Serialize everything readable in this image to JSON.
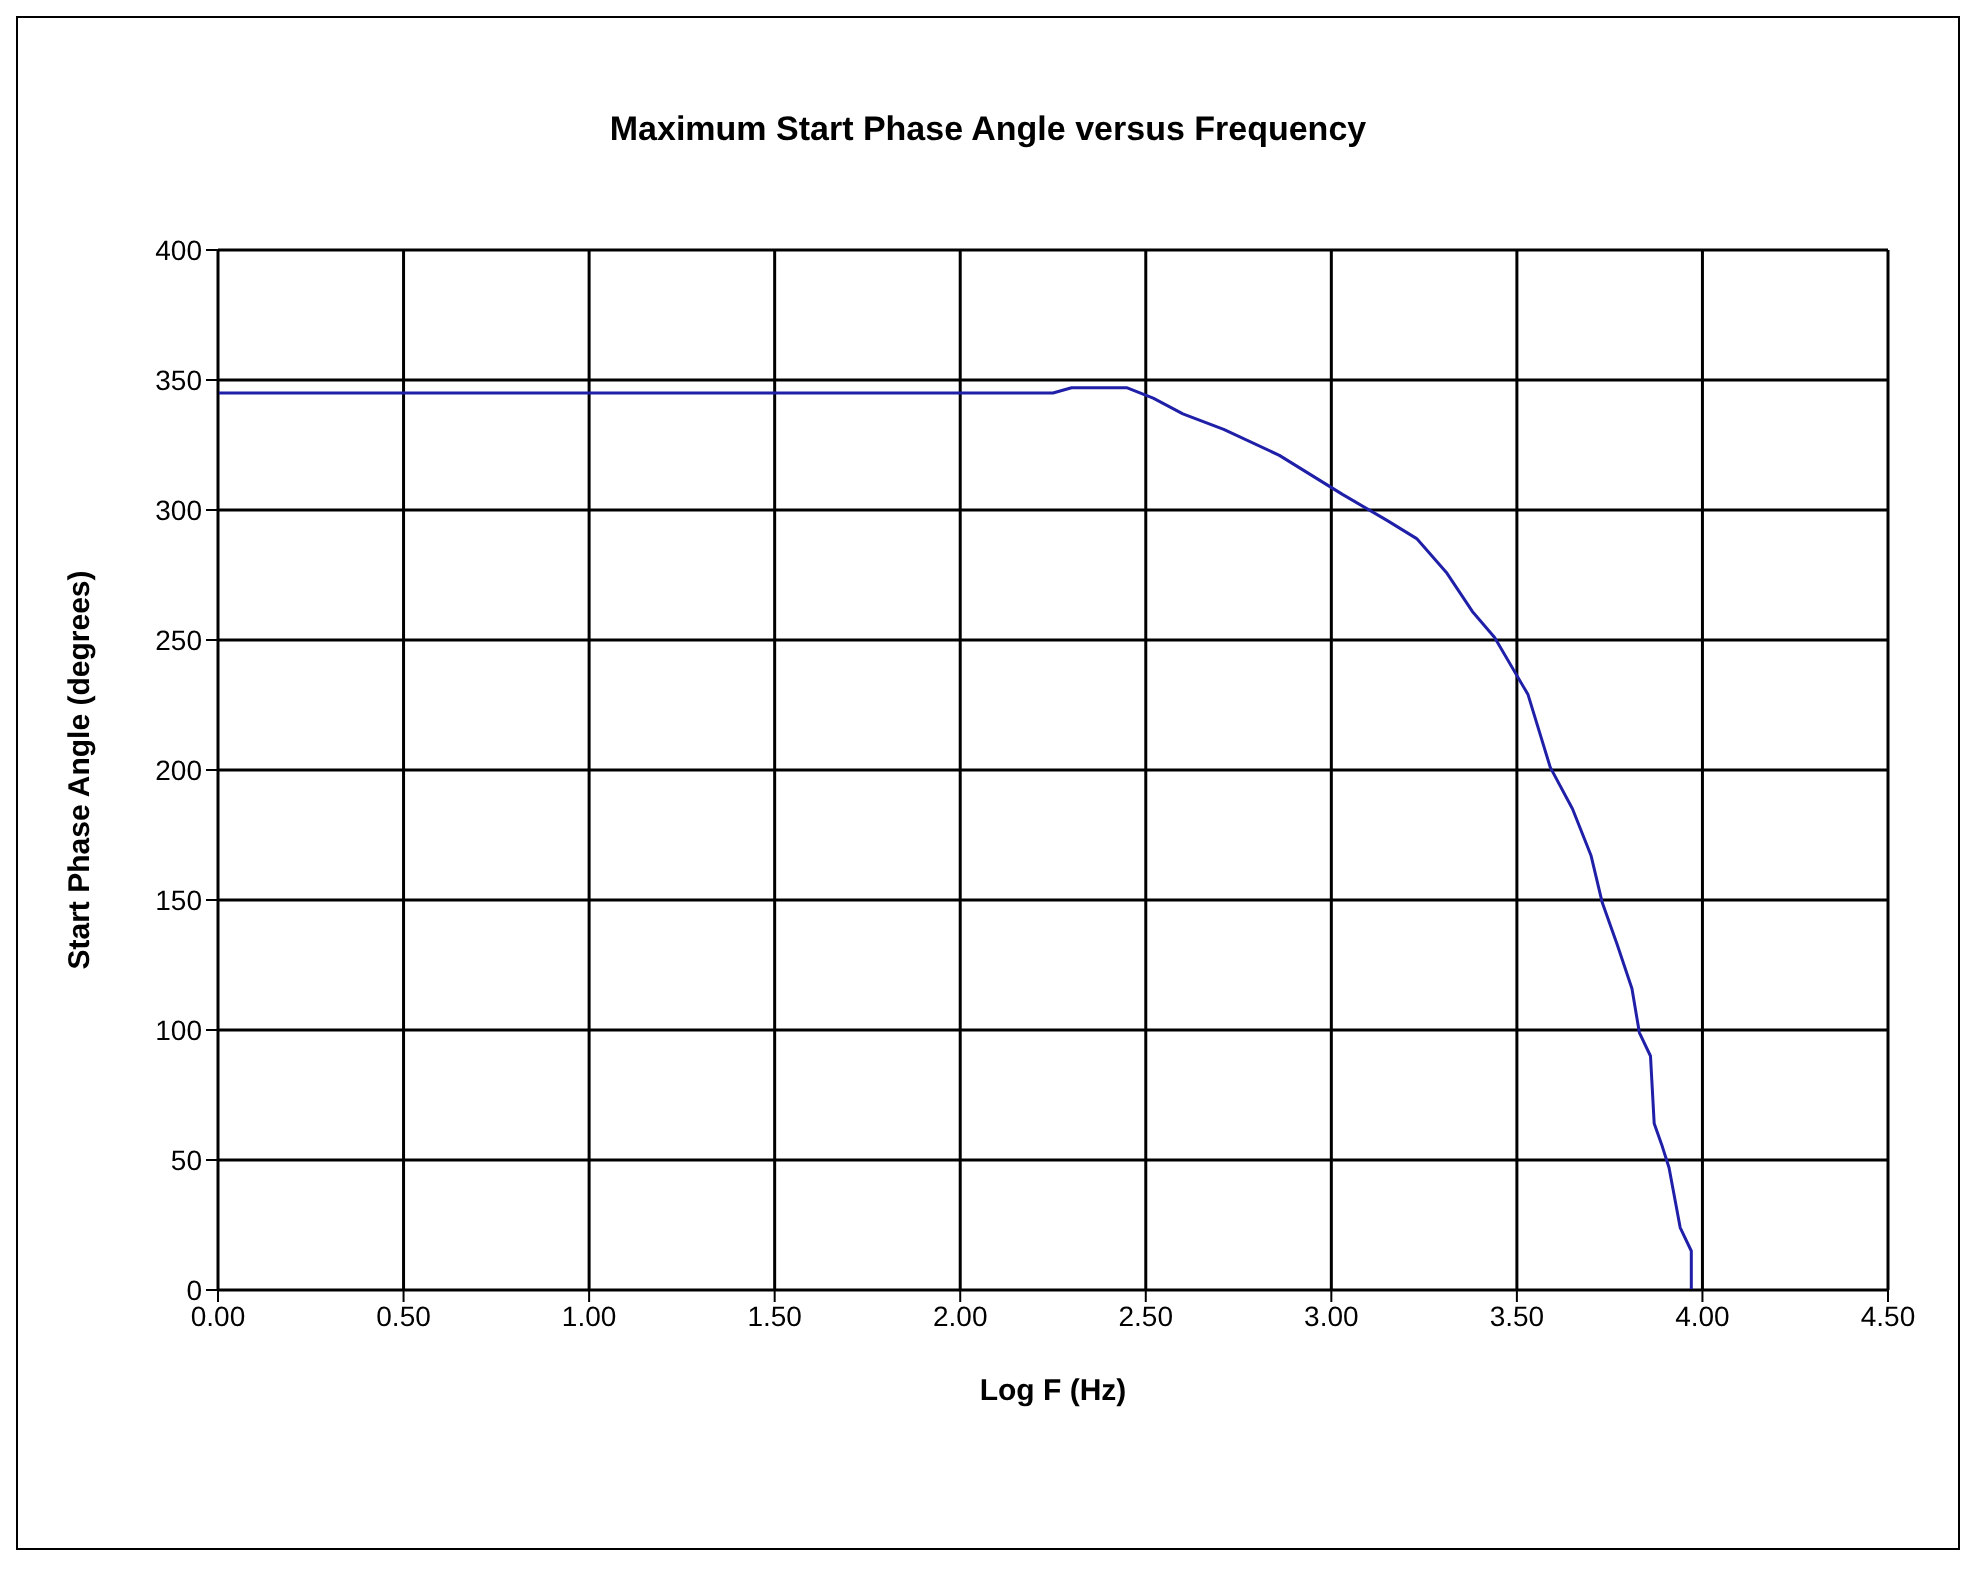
{
  "chart_data": {
    "type": "line",
    "title": "Maximum Start Phase Angle versus Frequency",
    "xlabel": "Log F (Hz)",
    "ylabel": "Start Phase Angle (degrees)",
    "x": [
      0,
      0.5,
      1,
      1.5,
      2,
      2.25,
      2.3,
      2.45,
      2.52,
      2.6,
      2.71,
      2.86,
      3.03,
      3.15,
      3.23,
      3.31,
      3.38,
      3.44,
      3.53,
      3.59,
      3.65,
      3.7,
      3.73,
      3.77,
      3.81,
      3.83,
      3.86,
      3.87,
      3.89,
      3.91,
      3.94,
      3.97,
      3.97
    ],
    "series": [
      {
        "color": "#1f1fa8",
        "values": [
          345,
          345,
          345,
          345,
          345,
          345,
          347,
          347,
          343,
          337,
          331,
          321,
          306,
          296,
          289,
          276,
          261,
          251,
          229,
          201,
          185,
          167,
          149,
          133,
          116,
          99,
          90,
          64,
          56,
          47,
          24,
          15,
          0
        ]
      }
    ],
    "xlim": [
      0,
      4.5
    ],
    "xticks": [
      {
        "value": 0,
        "label": "0.00"
      },
      {
        "value": 0.5,
        "label": "0.50"
      },
      {
        "value": 1,
        "label": "1.00"
      },
      {
        "value": 1.5,
        "label": "1.50"
      },
      {
        "value": 2,
        "label": "2.00"
      },
      {
        "value": 2.5,
        "label": "2.50"
      },
      {
        "value": 3,
        "label": "3.00"
      },
      {
        "value": 3.5,
        "label": "3.50"
      },
      {
        "value": 4,
        "label": "4.00"
      },
      {
        "value": 4.5,
        "label": "4.50"
      }
    ],
    "ylim": [
      0,
      400
    ],
    "yticks": [
      0,
      50,
      100,
      150,
      200,
      250,
      300,
      350,
      400
    ],
    "grid": true,
    "marker": "none",
    "line_style": "solid"
  }
}
